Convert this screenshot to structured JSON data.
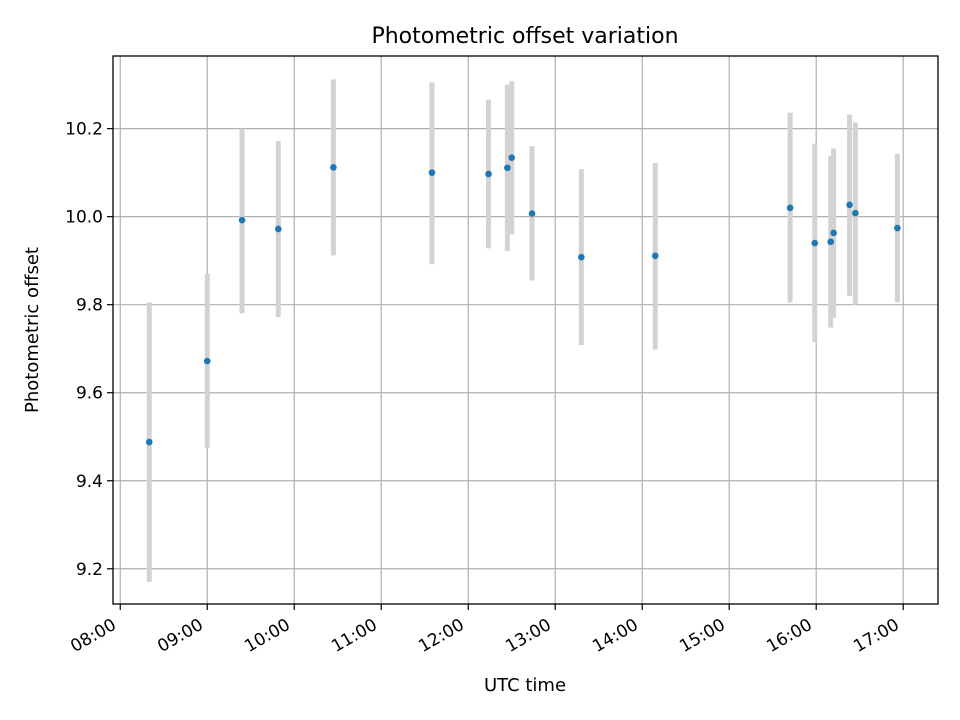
{
  "chart_data": {
    "type": "scatter",
    "title": "Photometric offset variation",
    "xlabel": "UTC time",
    "ylabel": "Photometric offset",
    "x_ticks": [
      "08:00",
      "09:00",
      "10:00",
      "11:00",
      "12:00",
      "13:00",
      "14:00",
      "15:00",
      "16:00",
      "17:00"
    ],
    "y_ticks": [
      "9.2",
      "9.4",
      "9.6",
      "9.8",
      "10.0",
      "10.2"
    ],
    "xlim": [
      "07:55",
      "17:24"
    ],
    "ylim": [
      9.12,
      10.365
    ],
    "grid": true,
    "legend": "none",
    "colors": {
      "point": "#1f77b4",
      "errorbar": "#d3d3d3"
    },
    "points": [
      {
        "x": "08:20",
        "y": 9.488,
        "y_low": 9.17,
        "y_high": 9.805
      },
      {
        "x": "09:00",
        "y": 9.672,
        "y_low": 9.475,
        "y_high": 9.87
      },
      {
        "x": "09:24",
        "y": 9.992,
        "y_low": 9.78,
        "y_high": 10.2
      },
      {
        "x": "09:49",
        "y": 9.972,
        "y_low": 9.772,
        "y_high": 10.172
      },
      {
        "x": "10:27",
        "y": 10.112,
        "y_low": 9.912,
        "y_high": 10.312
      },
      {
        "x": "11:35",
        "y": 10.1,
        "y_low": 9.892,
        "y_high": 10.305
      },
      {
        "x": "12:14",
        "y": 10.097,
        "y_low": 9.928,
        "y_high": 10.266
      },
      {
        "x": "12:27",
        "y": 10.111,
        "y_low": 9.922,
        "y_high": 10.3
      },
      {
        "x": "12:30",
        "y": 10.134,
        "y_low": 9.96,
        "y_high": 10.308
      },
      {
        "x": "12:44",
        "y": 10.007,
        "y_low": 9.855,
        "y_high": 10.16
      },
      {
        "x": "13:18",
        "y": 9.908,
        "y_low": 9.708,
        "y_high": 10.108
      },
      {
        "x": "14:09",
        "y": 9.911,
        "y_low": 9.698,
        "y_high": 10.122
      },
      {
        "x": "15:42",
        "y": 10.02,
        "y_low": 9.805,
        "y_high": 10.236
      },
      {
        "x": "15:59",
        "y": 9.94,
        "y_low": 9.715,
        "y_high": 10.166
      },
      {
        "x": "16:10",
        "y": 9.943,
        "y_low": 9.748,
        "y_high": 10.138
      },
      {
        "x": "16:12",
        "y": 9.963,
        "y_low": 9.77,
        "y_high": 10.155
      },
      {
        "x": "16:23",
        "y": 10.027,
        "y_low": 9.82,
        "y_high": 10.232
      },
      {
        "x": "16:27",
        "y": 10.008,
        "y_low": 9.8,
        "y_high": 10.214
      },
      {
        "x": "16:56",
        "y": 9.974,
        "y_low": 9.805,
        "y_high": 10.143
      }
    ]
  }
}
